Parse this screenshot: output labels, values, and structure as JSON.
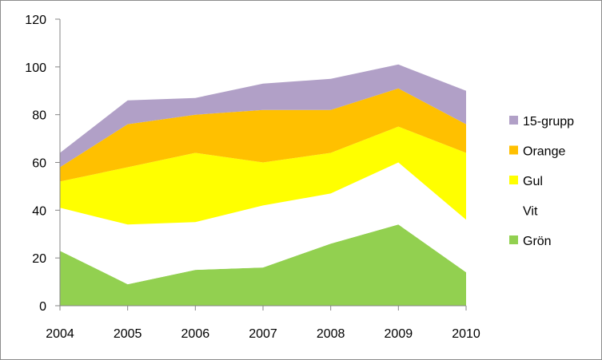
{
  "chart_data": {
    "type": "area",
    "stacked": true,
    "title": "",
    "xlabel": "",
    "ylabel": "",
    "x": [
      "2004",
      "2005",
      "2006",
      "2007",
      "2008",
      "2009",
      "2010"
    ],
    "ylim": [
      0,
      120
    ],
    "yticks": [
      "0",
      "20",
      "40",
      "60",
      "80",
      "100",
      "120"
    ],
    "grid": false,
    "legend_position": "right",
    "series": [
      {
        "name": "Grön",
        "color": "#92d050",
        "values": [
          23,
          9,
          15,
          16,
          26,
          34,
          14
        ]
      },
      {
        "name": "Vit",
        "color": "#ffffff",
        "values": [
          18,
          25,
          20,
          26,
          21,
          26,
          22
        ]
      },
      {
        "name": "Gul",
        "color": "#ffff00",
        "values": [
          11,
          24,
          29,
          18,
          17,
          15,
          28
        ]
      },
      {
        "name": "Orange",
        "color": "#ffc000",
        "values": [
          6,
          18,
          16,
          22,
          18,
          16,
          12
        ]
      },
      {
        "name": "15-grupp",
        "color": "#b1a0c7",
        "values": [
          6,
          10,
          7,
          11,
          13,
          10,
          14
        ]
      }
    ],
    "legend_order": [
      "15-grupp",
      "Orange",
      "Gul",
      "Vit",
      "Grön"
    ]
  }
}
